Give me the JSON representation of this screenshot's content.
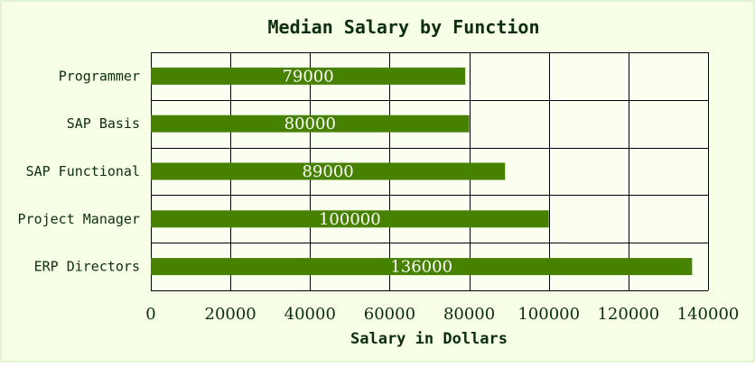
{
  "chart_data": {
    "type": "bar",
    "orientation": "horizontal",
    "title": "Median Salary by Function",
    "xlabel": "Salary in Dollars",
    "ylabel": "",
    "categories": [
      "Programmer",
      "SAP Basis",
      "SAP Functional",
      "Project Manager",
      "ERP Directors"
    ],
    "values": [
      79000,
      80000,
      89000,
      100000,
      136000
    ],
    "data_labels": [
      "79000",
      "80000",
      "89000",
      "100000",
      "136000"
    ],
    "xlim": [
      0,
      140000
    ],
    "x_ticks": [
      0,
      20000,
      40000,
      60000,
      80000,
      100000,
      120000,
      140000
    ],
    "x_tick_labels": [
      "0",
      "20000",
      "40000",
      "60000",
      "80000",
      "100000",
      "120000",
      "140000"
    ],
    "grid": true,
    "legend": "none",
    "colors": {
      "bar": "#468200",
      "background": "#f7ffe6",
      "plot_background": "#fbfff0",
      "grid": "#000000",
      "text": "#0b2f0b",
      "data_label": "#ffffff",
      "border": "#c8e6a8"
    }
  }
}
